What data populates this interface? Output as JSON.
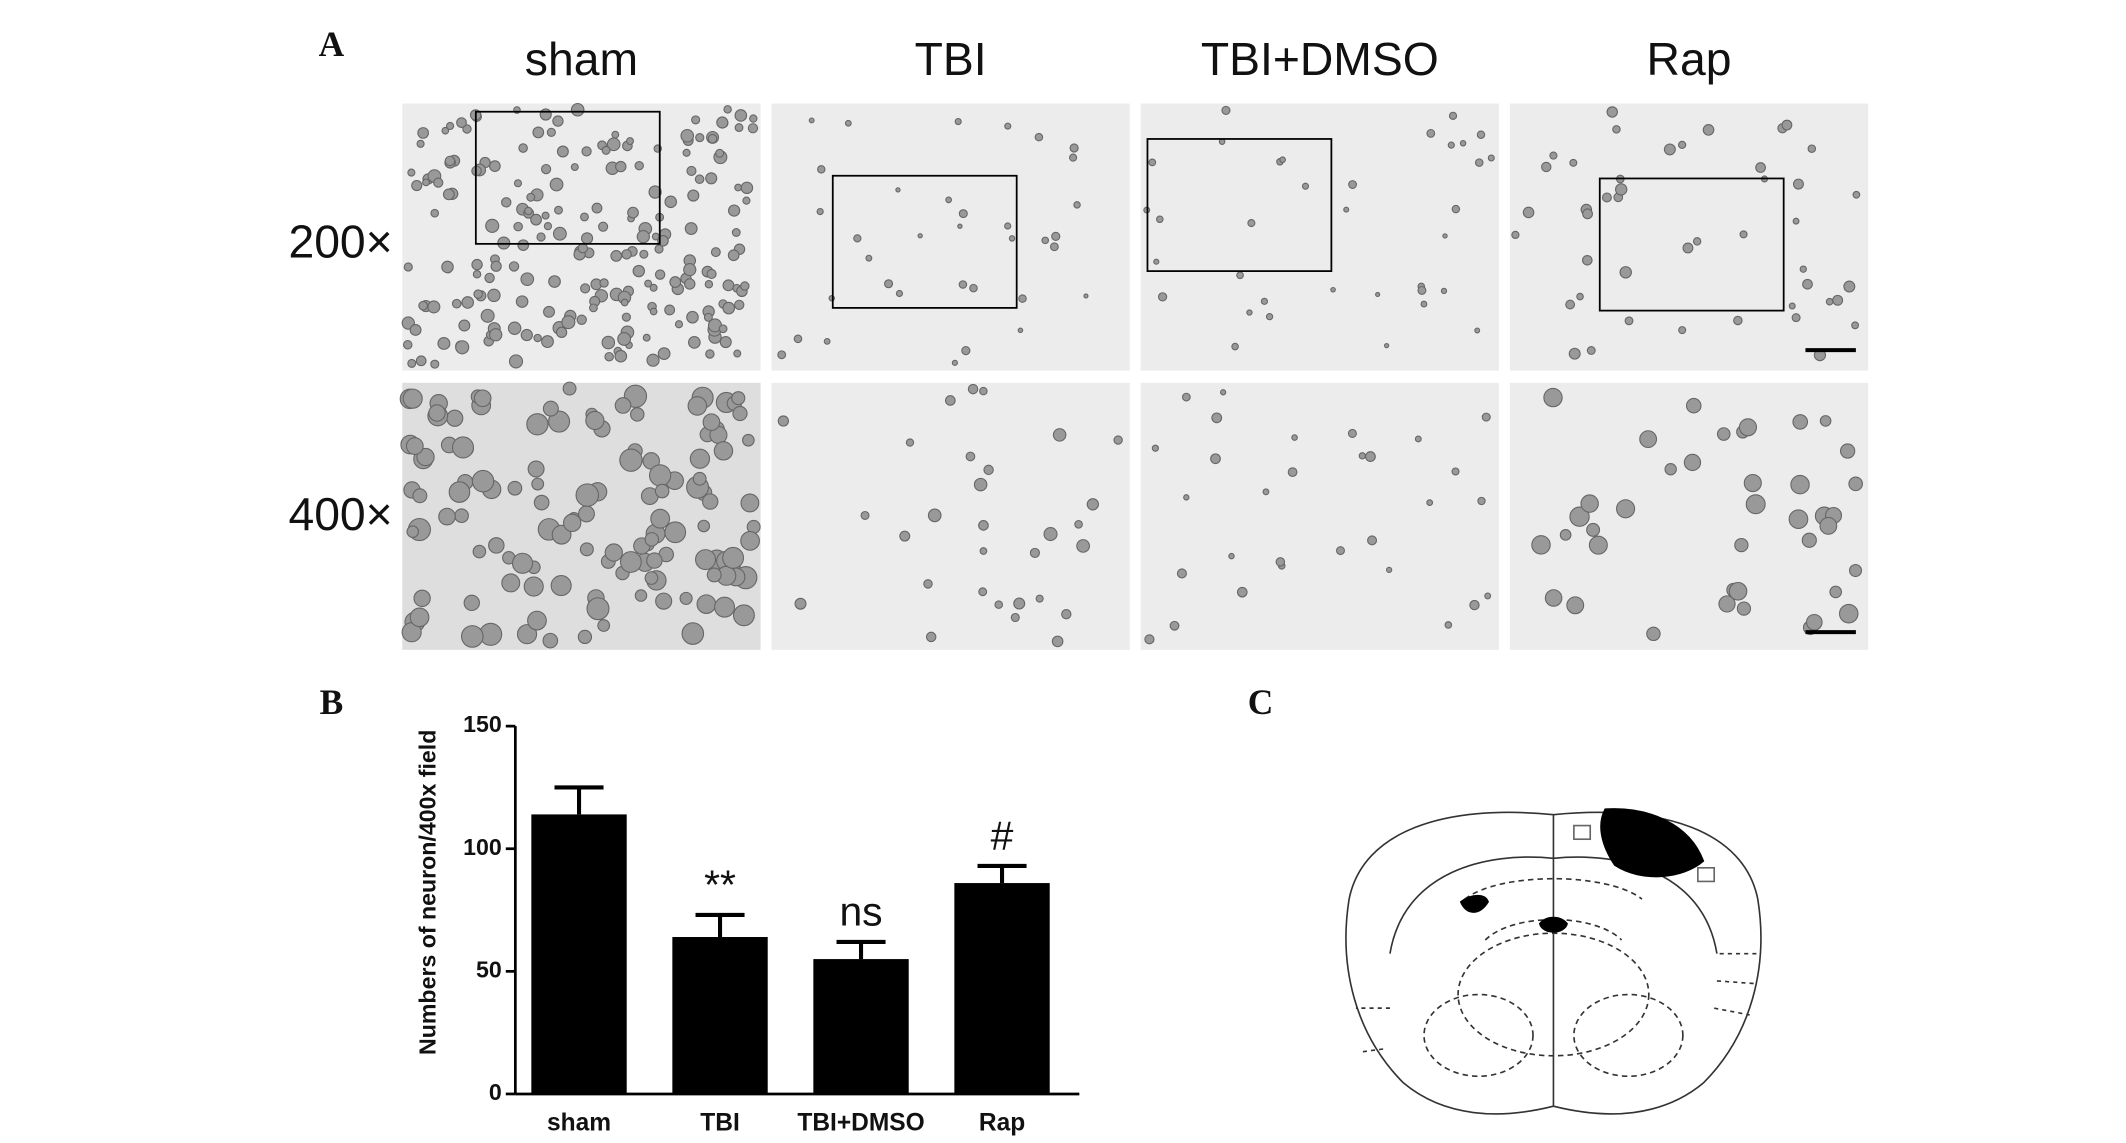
{
  "panels": {
    "a_label": "A",
    "b_label": "B",
    "c_label": "C",
    "columns": [
      "sham",
      "TBI",
      "TBI+DMSO",
      "Rap"
    ],
    "rows": [
      "200×",
      "400×"
    ]
  },
  "chart_data": {
    "type": "bar",
    "ylabel": "Numbers of neuron/400x field",
    "categories": [
      "sham",
      "TBI",
      "TBI+DMSO",
      "Rap"
    ],
    "values": [
      114,
      64,
      55,
      86
    ],
    "errors": [
      11,
      9,
      7,
      7
    ],
    "annotations": [
      null,
      "**",
      "ns",
      "#"
    ],
    "color": "#000000",
    "ylim": [
      0,
      150
    ],
    "yticks": [
      0,
      50,
      100,
      150
    ],
    "grid": false
  }
}
